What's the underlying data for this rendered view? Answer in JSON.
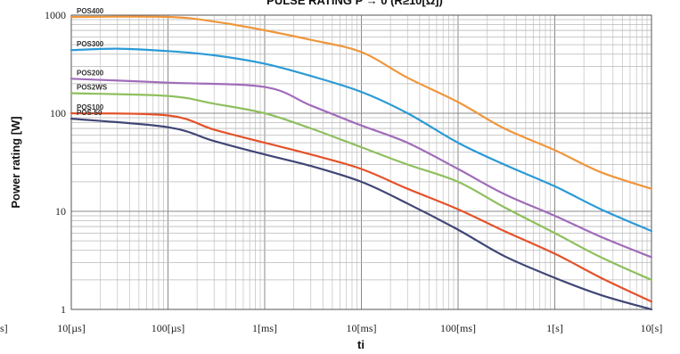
{
  "chart_data": {
    "type": "line",
    "title": "PULSE RATING P → 0 (R≥10[Ω])",
    "xlabel": "ti",
    "ylabel": "Power rating [W]",
    "x_scale": "log",
    "y_scale": "log",
    "x_unit": "seconds",
    "xlim": [
      1e-05,
      10
    ],
    "ylim": [
      1,
      1000
    ],
    "x_ticks": [
      {
        "value": 1e-05,
        "label": "10[µs]"
      },
      {
        "value": 0.0001,
        "label": "100[µs]"
      },
      {
        "value": 0.001,
        "label": "1[ms]"
      },
      {
        "value": 0.01,
        "label": "10[ms]"
      },
      {
        "value": 0.1,
        "label": "100[ms]"
      },
      {
        "value": 1,
        "label": "1[s]"
      },
      {
        "value": 10,
        "label": "10[s]"
      }
    ],
    "y_ticks": [
      {
        "value": 1,
        "label": "1"
      },
      {
        "value": 10,
        "label": "10"
      },
      {
        "value": 100,
        "label": "100"
      },
      {
        "value": 1000,
        "label": "1000"
      }
    ],
    "grid": true,
    "left_edge_fragment": "s]",
    "series": [
      {
        "name": "POS400",
        "color": "#f0963c",
        "x": [
          1e-05,
          0.0001,
          0.0003,
          0.001,
          0.003,
          0.01,
          0.03,
          0.1,
          0.3,
          1,
          3,
          10
        ],
        "y": [
          960,
          960,
          860,
          700,
          560,
          420,
          230,
          130,
          70,
          42,
          25,
          17
        ]
      },
      {
        "name": "POS300",
        "color": "#2a9ad6",
        "x": [
          1e-05,
          3e-05,
          0.0001,
          0.0003,
          0.001,
          0.003,
          0.01,
          0.03,
          0.1,
          0.3,
          1,
          3,
          10
        ],
        "y": [
          440,
          455,
          430,
          390,
          320,
          240,
          165,
          100,
          50,
          30,
          18,
          10.5,
          6.3
        ]
      },
      {
        "name": "POS200",
        "color": "#a06cba",
        "x": [
          1e-05,
          0.0001,
          0.001,
          0.003,
          0.01,
          0.03,
          0.1,
          0.3,
          1,
          3,
          10
        ],
        "y": [
          225,
          205,
          185,
          120,
          75,
          50,
          27,
          15,
          9,
          5.5,
          3.4
        ]
      },
      {
        "name": "POS2WS",
        "color": "#8fbf5e",
        "x": [
          1e-05,
          0.0001,
          0.0003,
          0.001,
          0.003,
          0.01,
          0.03,
          0.1,
          0.3,
          1,
          3,
          10
        ],
        "y": [
          160,
          150,
          125,
          100,
          70,
          45,
          30,
          20,
          11,
          6,
          3.4,
          2
        ]
      },
      {
        "name": "POS100",
        "color": "#e4522a",
        "x": [
          1e-05,
          0.0001,
          0.0003,
          0.001,
          0.003,
          0.01,
          0.03,
          0.1,
          0.3,
          1,
          3,
          10
        ],
        "y": [
          100,
          95,
          68,
          50,
          38,
          27,
          17,
          10.5,
          6.3,
          3.7,
          2.1,
          1.2
        ]
      },
      {
        "name": "POS-50",
        "color": "#3f4675",
        "x": [
          1e-05,
          0.0001,
          0.0003,
          0.001,
          0.003,
          0.01,
          0.03,
          0.1,
          0.3,
          1,
          3,
          10
        ],
        "y": [
          88,
          72,
          52,
          38,
          29,
          20,
          12,
          6.5,
          3.5,
          2.1,
          1.4,
          1.0
        ]
      }
    ]
  }
}
